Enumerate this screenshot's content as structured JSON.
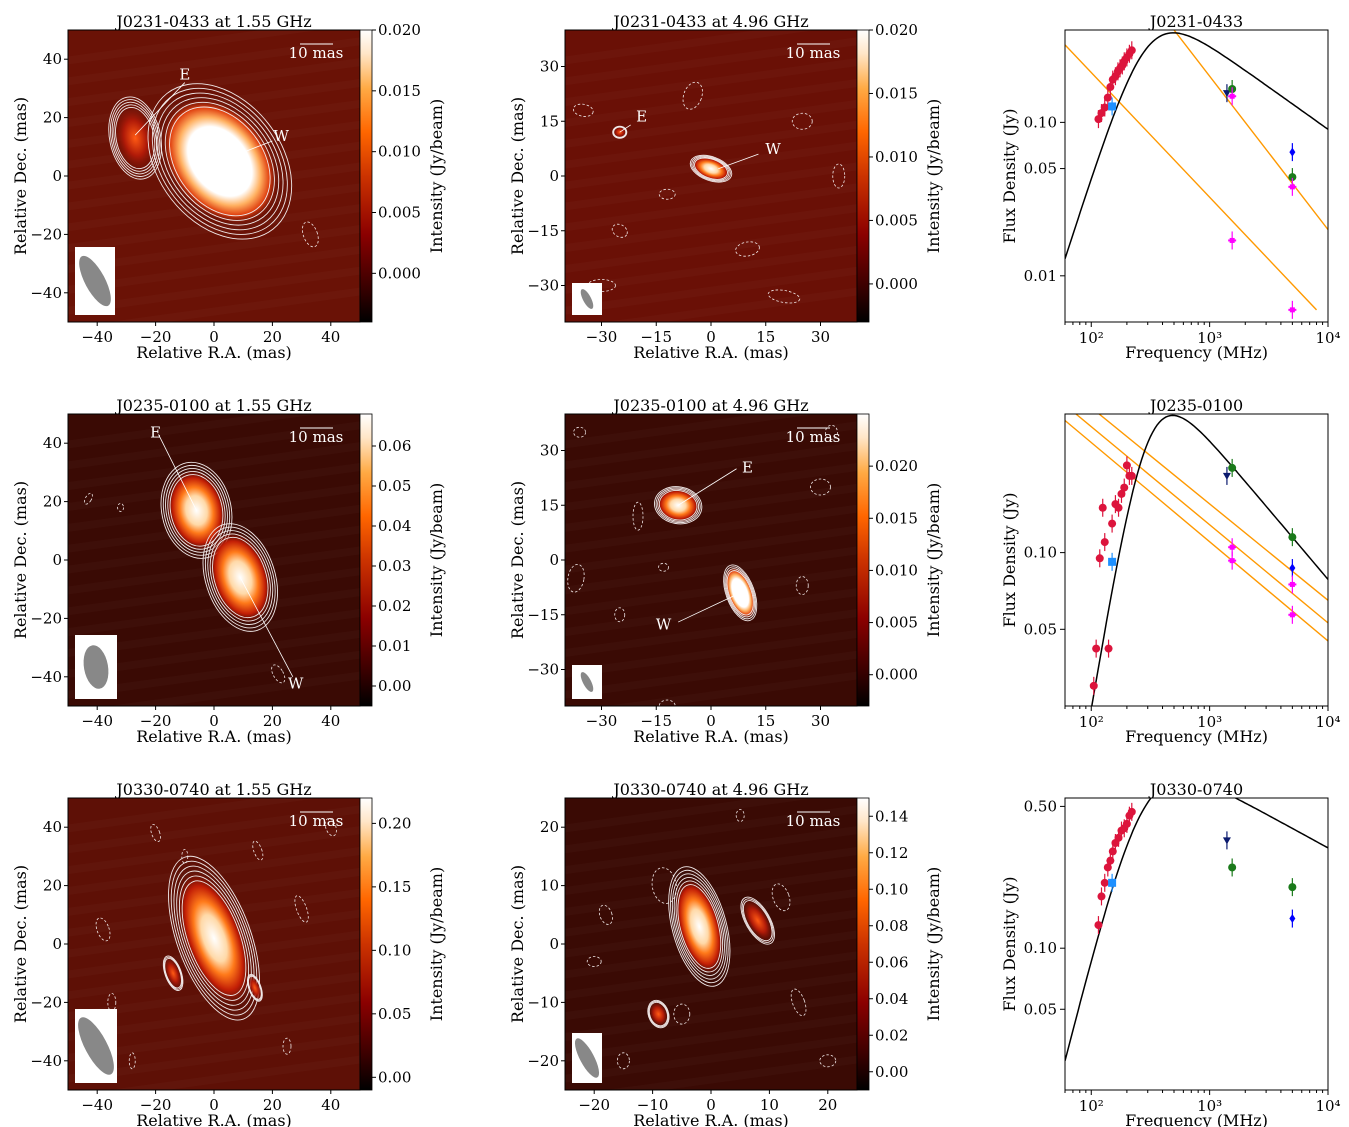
{
  "colors": {
    "map_dark": "#3a0a04",
    "map_mid": "#8a1a0a",
    "contour": "#f0e8e8",
    "fit_curve": "#000000",
    "power_law": "#ff9900",
    "lofar_like": "#dc143c",
    "tgss_like": "#1e90ff",
    "navy_point": "#0b1a6e",
    "green_point": "#1a7a1a",
    "blue_point": "#0000ff",
    "magenta_point": "#ff00ff",
    "beam": "#888888",
    "colorbar": [
      "#000000",
      "#3a0000",
      "#8b0000",
      "#cc3300",
      "#ff6600",
      "#ffaa44",
      "#ffe6c8",
      "#ffffff"
    ]
  },
  "scalebar_label": "10 mas",
  "rows": [
    {
      "map_l": {
        "title": "J0231-0433 at 1.55 GHz",
        "xlabel": "Relative R.A. (mas)",
        "ylabel": "Relative Dec. (mas)",
        "cbar_label": "Intensity (Jy/beam)",
        "xticks": [
          "−40",
          "−20",
          "0",
          "20",
          "40"
        ],
        "yticks": [
          "40",
          "20",
          "0",
          "−20",
          "−40"
        ],
        "cbar_ticks": [
          "0.020",
          "0.015",
          "0.010",
          "0.005",
          "0.000"
        ],
        "labels": [
          "E",
          "W"
        ]
      },
      "map_r": {
        "title": "J0231-0433 at 4.96 GHz",
        "xlabel": "Relative R.A. (mas)",
        "ylabel": "Relative Dec. (mas)",
        "cbar_label": "Intensity (Jy/beam)",
        "xticks": [
          "−30",
          "−15",
          "0",
          "15",
          "30"
        ],
        "yticks": [
          "30",
          "15",
          "0",
          "−15",
          "−30"
        ],
        "cbar_ticks": [
          "0.020",
          "0.015",
          "0.010",
          "0.005",
          "0.000"
        ],
        "labels": [
          "E",
          "W"
        ]
      },
      "spec": {
        "title": "J0231-0433",
        "xlabel": "Frequency (MHz)",
        "ylabel": "Flux Density (Jy)",
        "xticks": [
          "10²",
          "10³",
          "10⁴"
        ],
        "yticks": [
          "0.10",
          "0.05",
          "0.01"
        ]
      }
    },
    {
      "map_l": {
        "title": "J0235-0100 at 1.55 GHz",
        "xlabel": "Relative R.A. (mas)",
        "ylabel": "Relative Dec. (mas)",
        "cbar_label": "Intensity (Jy/beam)",
        "xticks": [
          "−40",
          "−20",
          "0",
          "20",
          "40"
        ],
        "yticks": [
          "40",
          "20",
          "0",
          "−20",
          "−40"
        ],
        "cbar_ticks": [
          "0.06",
          "0.05",
          "0.04",
          "0.03",
          "0.02",
          "0.01",
          "0.00"
        ],
        "labels": [
          "E",
          "W"
        ]
      },
      "map_r": {
        "title": "J0235-0100 at 4.96 GHz",
        "xlabel": "Relative R.A. (mas)",
        "ylabel": "Relative Dec. (mas)",
        "cbar_label": "Intensity (Jy/beam)",
        "xticks": [
          "−30",
          "−15",
          "0",
          "15",
          "30"
        ],
        "yticks": [
          "30",
          "15",
          "0",
          "−15",
          "−30"
        ],
        "cbar_ticks": [
          "0.020",
          "0.015",
          "0.010",
          "0.005",
          "0.000"
        ],
        "labels": [
          "E",
          "W"
        ]
      },
      "spec": {
        "title": "J0235-0100",
        "xlabel": "Frequency (MHz)",
        "ylabel": "Flux Density (Jy)",
        "xticks": [
          "10²",
          "10³",
          "10⁴"
        ],
        "yticks": [
          "0.10",
          "0.05"
        ]
      }
    },
    {
      "map_l": {
        "title": "J0330-0740 at 1.55 GHz",
        "xlabel": "Relative R.A. (mas)",
        "ylabel": "Relative Dec. (mas)",
        "cbar_label": "Intensity (Jy/beam)",
        "xticks": [
          "−40",
          "−20",
          "0",
          "20",
          "40"
        ],
        "yticks": [
          "40",
          "20",
          "0",
          "−20",
          "−40"
        ],
        "cbar_ticks": [
          "0.20",
          "0.15",
          "0.10",
          "0.05",
          "0.00"
        ],
        "labels": []
      },
      "map_r": {
        "title": "J0330-0740 at 4.96 GHz",
        "xlabel": "Relative R.A. (mas)",
        "ylabel": "Relative Dec. (mas)",
        "cbar_label": "Intensity (Jy/beam)",
        "xticks": [
          "−20",
          "−10",
          "0",
          "10",
          "20"
        ],
        "yticks": [
          "20",
          "10",
          "0",
          "−10",
          "−20"
        ],
        "cbar_ticks": [
          "0.14",
          "0.12",
          "0.10",
          "0.08",
          "0.06",
          "0.04",
          "0.02",
          "0.00"
        ],
        "labels": []
      },
      "spec": {
        "title": "J0330-0740",
        "xlabel": "Frequency (MHz)",
        "ylabel": "Flux Density (Jy)",
        "xticks": [
          "10²",
          "10³",
          "10⁴"
        ],
        "yticks": [
          "0.50",
          "0.10",
          "0.05"
        ]
      }
    }
  ],
  "chart_data": [
    {
      "type": "heatmap",
      "title": "J0231-0433 at 1.55 GHz",
      "xlabel": "Relative R.A. (mas)",
      "ylabel": "Relative Dec. (mas)",
      "xlim": [
        -50,
        50
      ],
      "ylim": [
        -50,
        50
      ],
      "colorbar_label": "Intensity (Jy/beam)",
      "colorbar_range": [
        -0.004,
        0.02
      ],
      "components": [
        {
          "label": "E",
          "x": -27,
          "y": 13,
          "peak": 0.013
        },
        {
          "label": "W",
          "x": 2,
          "y": 5,
          "peak": 0.02
        }
      ]
    },
    {
      "type": "heatmap",
      "title": "J0231-0433 at 4.96 GHz",
      "xlabel": "Relative R.A. (mas)",
      "ylabel": "Relative Dec. (mas)",
      "xlim": [
        -40,
        40
      ],
      "ylim": [
        -40,
        40
      ],
      "colorbar_label": "Intensity (Jy/beam)",
      "colorbar_range": [
        -0.003,
        0.02
      ],
      "components": [
        {
          "label": "E",
          "x": -25,
          "y": 12,
          "peak": 0.003
        },
        {
          "label": "W",
          "x": 0,
          "y": 2,
          "peak": 0.012
        }
      ]
    },
    {
      "type": "scatter",
      "title": "J0231-0433",
      "xlabel": "Frequency (MHz)",
      "ylabel": "Flux Density (Jy)",
      "xscale": "log",
      "yscale": "log",
      "xlim": [
        60,
        10000
      ],
      "ylim": [
        0.005,
        0.4
      ],
      "series": [
        {
          "values": [
            [
              115,
              0.105
            ],
            [
              122,
              0.115
            ],
            [
              130,
              0.125
            ],
            [
              138,
              0.145
            ],
            [
              145,
              0.17
            ],
            [
              152,
              0.19
            ],
            [
              160,
              0.2
            ],
            [
              168,
              0.215
            ],
            [
              175,
              0.225
            ],
            [
              183,
              0.235
            ],
            [
              190,
              0.25
            ],
            [
              200,
              0.265
            ],
            [
              210,
              0.28
            ],
            [
              220,
              0.295
            ]
          ]
        },
        {
          "values": [
            [
              150,
              0.127
            ]
          ]
        },
        {
          "values": [
            [
              1400,
              0.155
            ]
          ]
        },
        {
          "values": [
            [
              1550,
              0.165
            ],
            [
              5000,
              0.044
            ]
          ]
        },
        {
          "values": [
            [
              5000,
              0.064
            ]
          ]
        },
        {
          "values": [
            [
              1550,
              0.148
            ],
            [
              1550,
              0.017
            ],
            [
              5000,
              0.038
            ],
            [
              5000,
              0.006
            ]
          ]
        }
      ],
      "fit_peak": {
        "freq": 300,
        "flux": 0.31
      }
    },
    {
      "type": "heatmap",
      "title": "J0235-0100 at 1.55 GHz",
      "xlabel": "Relative R.A. (mas)",
      "ylabel": "Relative Dec. (mas)",
      "xlim": [
        -50,
        50
      ],
      "ylim": [
        -50,
        50
      ],
      "colorbar_label": "Intensity (Jy/beam)",
      "colorbar_range": [
        -0.005,
        0.068
      ],
      "components": [
        {
          "label": "E",
          "x": -6,
          "y": 17,
          "peak": 0.055
        },
        {
          "label": "W",
          "x": 9,
          "y": -6,
          "peak": 0.062
        }
      ]
    },
    {
      "type": "heatmap",
      "title": "J0235-0100 at 4.96 GHz",
      "xlabel": "Relative R.A. (mas)",
      "ylabel": "Relative Dec. (mas)",
      "xlim": [
        -40,
        40
      ],
      "ylim": [
        -40,
        40
      ],
      "colorbar_label": "Intensity (Jy/beam)",
      "colorbar_range": [
        -0.003,
        0.025
      ],
      "components": [
        {
          "label": "E",
          "x": -9,
          "y": 15,
          "peak": 0.015
        },
        {
          "label": "W",
          "x": 8,
          "y": -9,
          "peak": 0.022
        }
      ]
    },
    {
      "type": "scatter",
      "title": "J0235-0100",
      "xlabel": "Frequency (MHz)",
      "ylabel": "Flux Density (Jy)",
      "xscale": "log",
      "yscale": "log",
      "xlim": [
        60,
        10000
      ],
      "ylim": [
        0.025,
        0.35
      ],
      "series": [
        {
          "values": [
            [
              105,
              0.03
            ],
            [
              110,
              0.042
            ],
            [
              118,
              0.095
            ],
            [
              125,
              0.15
            ],
            [
              130,
              0.11
            ],
            [
              140,
              0.042
            ],
            [
              150,
              0.13
            ],
            [
              160,
              0.155
            ],
            [
              170,
              0.15
            ],
            [
              180,
              0.17
            ],
            [
              190,
              0.18
            ],
            [
              200,
              0.22
            ],
            [
              210,
              0.2
            ],
            [
              220,
              0.2
            ]
          ]
        },
        {
          "values": [
            [
              150,
              0.092
            ]
          ]
        },
        {
          "values": [
            [
              1400,
              0.2
            ]
          ]
        },
        {
          "values": [
            [
              1550,
              0.215
            ],
            [
              5000,
              0.115
            ]
          ]
        },
        {
          "values": [
            [
              5000,
              0.087
            ]
          ]
        },
        {
          "values": [
            [
              1550,
              0.105
            ],
            [
              1550,
              0.093
            ],
            [
              5000,
              0.075
            ],
            [
              5000,
              0.057
            ]
          ]
        }
      ],
      "fit_peak": {
        "freq": 300,
        "flux": 0.27
      }
    },
    {
      "type": "heatmap",
      "title": "J0330-0740 at 1.55 GHz",
      "xlabel": "Relative R.A. (mas)",
      "ylabel": "Relative Dec. (mas)",
      "xlim": [
        -50,
        50
      ],
      "ylim": [
        -50,
        50
      ],
      "colorbar_label": "Intensity (Jy/beam)",
      "colorbar_range": [
        -0.01,
        0.22
      ],
      "components": [
        {
          "x": 0,
          "y": 2,
          "peak": 0.21
        }
      ]
    },
    {
      "type": "heatmap",
      "title": "J0330-0740 at 4.96 GHz",
      "xlabel": "Relative R.A. (mas)",
      "ylabel": "Relative Dec. (mas)",
      "xlim": [
        -25,
        25
      ],
      "ylim": [
        -25,
        25
      ],
      "colorbar_label": "Intensity (Jy/beam)",
      "colorbar_range": [
        -0.01,
        0.15
      ],
      "components": [
        {
          "x": -2,
          "y": 3,
          "peak": 0.14
        }
      ]
    },
    {
      "type": "scatter",
      "title": "J0330-0740",
      "xlabel": "Frequency (MHz)",
      "ylabel": "Flux Density (Jy)",
      "xscale": "log",
      "yscale": "log",
      "xlim": [
        60,
        10000
      ],
      "ylim": [
        0.02,
        0.55
      ],
      "series": [
        {
          "values": [
            [
              115,
              0.13
            ],
            [
              122,
              0.18
            ],
            [
              130,
              0.21
            ],
            [
              138,
              0.25
            ],
            [
              145,
              0.27
            ],
            [
              152,
              0.3
            ],
            [
              160,
              0.33
            ],
            [
              170,
              0.35
            ],
            [
              180,
              0.38
            ],
            [
              190,
              0.39
            ],
            [
              200,
              0.41
            ],
            [
              210,
              0.45
            ],
            [
              220,
              0.47
            ]
          ]
        },
        {
          "values": [
            [
              150,
              0.21
            ]
          ]
        },
        {
          "values": [
            [
              1400,
              0.34
            ]
          ]
        },
        {
          "values": [
            [
              1550,
              0.25
            ],
            [
              5000,
              0.2
            ]
          ]
        },
        {
          "values": [
            [
              5000,
              0.14
            ]
          ]
        }
      ],
      "fit_peak": {
        "freq": 280,
        "flux": 0.49
      }
    }
  ]
}
